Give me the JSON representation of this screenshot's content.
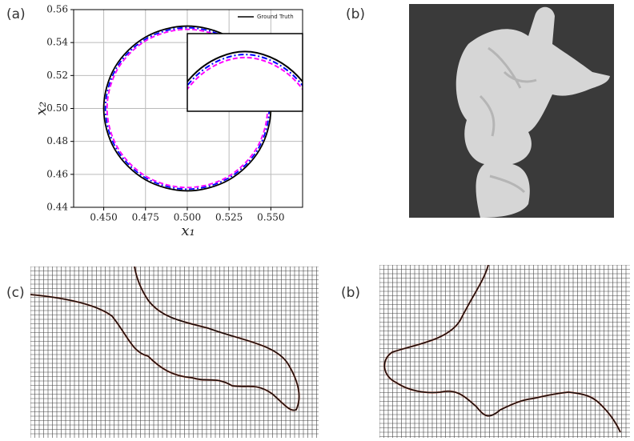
{
  "panels": {
    "a": "(a)",
    "b": "(b)",
    "c": "(c)",
    "d": "(b)"
  },
  "chart_data": {
    "type": "line",
    "xlabel": "x₁",
    "ylabel": "x₂",
    "xlim": [
      0.432,
      0.569
    ],
    "ylim": [
      0.44,
      0.56
    ],
    "xticks": [
      {
        "value": 0.45,
        "label": "0.450"
      },
      {
        "value": 0.475,
        "label": "0.475"
      },
      {
        "value": 0.5,
        "label": "0.500"
      },
      {
        "value": 0.525,
        "label": "0.525"
      },
      {
        "value": 0.55,
        "label": "0.550"
      }
    ],
    "yticks": [
      0.44,
      0.46,
      0.48,
      {
        "value": 0.5,
        "label": "0.50"
      },
      0.52,
      0.54,
      0.56
    ],
    "grid": true,
    "legend": "upper right",
    "series": [
      {
        "name": "Ground Truth",
        "color": "#000000",
        "x": [
          0.55,
          0.5433,
          0.525,
          0.5,
          0.475,
          0.4567,
          0.45,
          0.4567,
          0.475,
          0.5,
          0.525,
          0.5433,
          0.55
        ],
        "values": [
          0.5,
          0.525,
          0.5433,
          0.55,
          0.5433,
          0.525,
          0.5,
          0.475,
          0.4567,
          0.45,
          0.4567,
          0.475,
          0.5
        ]
      },
      {
        "color": "#0000ff",
        "x": [
          0.549,
          0.5424,
          0.5245,
          0.5,
          0.4755,
          0.4576,
          0.451,
          0.4576,
          0.4755,
          0.5,
          0.5245,
          0.5424,
          0.549
        ],
        "values": [
          0.5,
          0.5245,
          0.5424,
          0.549,
          0.5424,
          0.5245,
          0.5,
          0.4755,
          0.4576,
          0.451,
          0.4576,
          0.4755,
          0.5
        ]
      },
      {
        "color": "#ff00ff",
        "x": [
          0.548,
          0.5416,
          0.524,
          0.5,
          0.476,
          0.4584,
          0.452,
          0.4584,
          0.476,
          0.5,
          0.524,
          0.5416,
          0.548
        ],
        "values": [
          0.5,
          0.524,
          0.5416,
          0.548,
          0.5416,
          0.524,
          0.5,
          0.4761,
          0.4584,
          0.452,
          0.4584,
          0.4761,
          0.5
        ]
      }
    ]
  }
}
